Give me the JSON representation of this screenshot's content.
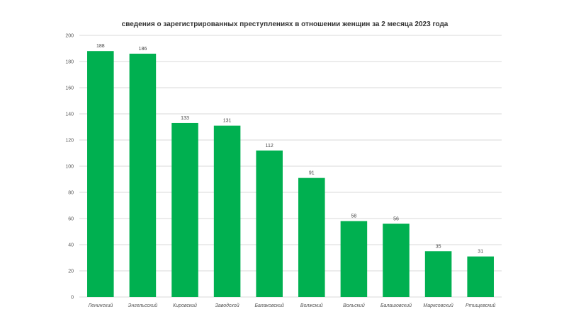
{
  "chart_data": {
    "type": "bar",
    "title": "сведения о зарегистрированных преступлениях в отношении женщин за 2 месяца 2023 года",
    "categories": [
      "Ленинский",
      "Энгельсский",
      "Кировский",
      "Заводской",
      "Балаковский",
      "Волжский",
      "Вольский",
      "Балашовский",
      "Марксовский",
      "Ртищевский"
    ],
    "values": [
      188,
      186,
      133,
      131,
      112,
      91,
      58,
      56,
      35,
      31
    ],
    "ylim": [
      0,
      200
    ],
    "yticks": [
      0,
      20,
      40,
      60,
      80,
      100,
      120,
      140,
      160,
      180,
      200
    ],
    "xlabel": "",
    "ylabel": "",
    "grid": true,
    "legend": "none",
    "bar_color": "#00b050",
    "grid_color": "#d9d9d9"
  }
}
